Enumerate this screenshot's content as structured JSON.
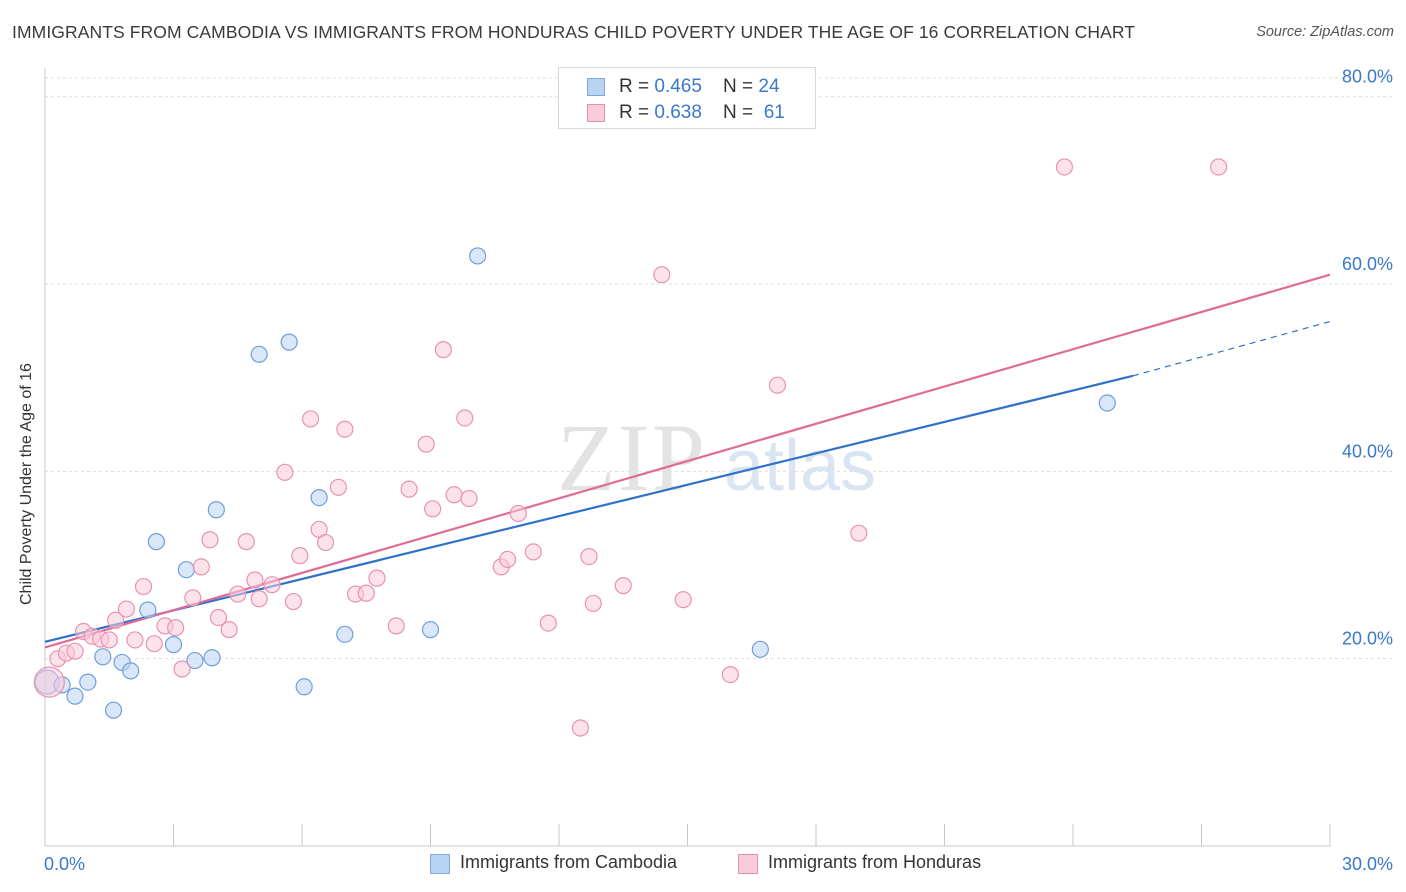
{
  "title": "IMMIGRANTS FROM CAMBODIA VS IMMIGRANTS FROM HONDURAS CHILD POVERTY UNDER THE AGE OF 16 CORRELATION CHART",
  "source": "Source: ZipAtlas.com",
  "watermark": {
    "zip": "ZIP",
    "atlas": "atlas"
  },
  "legend_top": {
    "rows": [
      {
        "r_label": "R = ",
        "r_value": "0.465",
        "n_label": "N = ",
        "n_value": "24",
        "color": "#a9c8f0",
        "border": "#7ea8dc"
      },
      {
        "r_label": "R = ",
        "r_value": "0.638",
        "n_label": "N = ",
        "n_value": "61",
        "color": "#f7bcd0",
        "border": "#e891ae"
      }
    ]
  },
  "chart_data": {
    "type": "scatter",
    "title": "IMMIGRANTS FROM CAMBODIA VS IMMIGRANTS FROM HONDURAS CHILD POVERTY UNDER THE AGE OF 16 CORRELATION CHART",
    "xlabel": "",
    "ylabel": "Child Poverty Under the Age of 16",
    "xlim": [
      0,
      30
    ],
    "ylim": [
      0,
      82
    ],
    "x_tick_labels": [
      "0.0%",
      "30.0%"
    ],
    "y_ticks": [
      20,
      40,
      60,
      80
    ],
    "y_tick_labels": [
      "20.0%",
      "40.0%",
      "60.0%",
      "80.0%"
    ],
    "grid": true,
    "legend_position": "top-center",
    "series": [
      {
        "name": "Immigrants from Cambodia",
        "color": "#6f9fd8",
        "fill": "#b9d3f2",
        "line_color": "#2f72c8",
        "trend": {
          "x0": 0,
          "y0": 21.8,
          "x1": 25.4,
          "y1": 50.2,
          "dash_to_x": 30,
          "dash_to_y": 56.0
        },
        "points": [
          [
            0.05,
            17.5
          ],
          [
            0.4,
            17.2
          ],
          [
            0.7,
            16.0
          ],
          [
            1.0,
            17.5
          ],
          [
            1.35,
            20.2
          ],
          [
            1.6,
            14.5
          ],
          [
            1.8,
            19.6
          ],
          [
            2.0,
            18.7
          ],
          [
            2.4,
            25.2
          ],
          [
            2.6,
            32.5
          ],
          [
            3.0,
            21.5
          ],
          [
            3.3,
            29.5
          ],
          [
            3.5,
            19.8
          ],
          [
            3.9,
            20.1
          ],
          [
            4.0,
            35.9
          ],
          [
            5.0,
            52.5
          ],
          [
            5.7,
            53.8
          ],
          [
            6.05,
            17.0
          ],
          [
            6.4,
            37.2
          ],
          [
            7.0,
            22.6
          ],
          [
            9.0,
            23.1
          ],
          [
            10.1,
            63.0
          ],
          [
            16.7,
            21.0
          ],
          [
            24.8,
            47.3
          ]
        ]
      },
      {
        "name": "Immigrants from Honduras",
        "color": "#e893b0",
        "fill": "#f9cbdb",
        "line_color": "#e06b96",
        "trend": {
          "x0": 0,
          "y0": 21.2,
          "x1": 30,
          "y1": 61.0
        },
        "points": [
          [
            0.1,
            17.5
          ],
          [
            0.3,
            20.0
          ],
          [
            0.5,
            20.6
          ],
          [
            0.7,
            20.8
          ],
          [
            0.9,
            22.9
          ],
          [
            1.1,
            22.4
          ],
          [
            1.3,
            22.1
          ],
          [
            1.5,
            22.0
          ],
          [
            1.65,
            24.1
          ],
          [
            1.9,
            25.3
          ],
          [
            2.1,
            22.0
          ],
          [
            2.3,
            27.7
          ],
          [
            2.55,
            21.6
          ],
          [
            2.8,
            23.5
          ],
          [
            3.05,
            23.3
          ],
          [
            3.2,
            18.9
          ],
          [
            3.45,
            26.5
          ],
          [
            3.65,
            29.8
          ],
          [
            3.85,
            32.7
          ],
          [
            4.05,
            24.4
          ],
          [
            4.3,
            23.1
          ],
          [
            4.5,
            26.9
          ],
          [
            4.7,
            32.5
          ],
          [
            4.9,
            28.4
          ],
          [
            5.0,
            26.4
          ],
          [
            5.3,
            27.9
          ],
          [
            5.6,
            39.9
          ],
          [
            5.8,
            26.1
          ],
          [
            5.95,
            31.0
          ],
          [
            6.2,
            45.6
          ],
          [
            6.4,
            33.8
          ],
          [
            6.55,
            32.4
          ],
          [
            6.85,
            38.3
          ],
          [
            7.0,
            44.5
          ],
          [
            7.25,
            26.9
          ],
          [
            7.5,
            27.0
          ],
          [
            7.75,
            28.6
          ],
          [
            8.2,
            23.5
          ],
          [
            8.5,
            38.1
          ],
          [
            8.9,
            42.9
          ],
          [
            9.05,
            36.0
          ],
          [
            9.3,
            53.0
          ],
          [
            9.55,
            37.5
          ],
          [
            9.8,
            45.7
          ],
          [
            9.9,
            37.1
          ],
          [
            10.65,
            29.8
          ],
          [
            10.8,
            30.6
          ],
          [
            11.05,
            35.5
          ],
          [
            11.4,
            31.4
          ],
          [
            11.75,
            23.8
          ],
          [
            12.5,
            12.6
          ],
          [
            12.7,
            30.9
          ],
          [
            12.8,
            25.9
          ],
          [
            13.5,
            27.8
          ],
          [
            14.4,
            61.0
          ],
          [
            14.9,
            26.3
          ],
          [
            16.0,
            18.3
          ],
          [
            17.1,
            49.2
          ],
          [
            19.0,
            33.4
          ],
          [
            23.8,
            72.5
          ],
          [
            27.4,
            72.5
          ]
        ]
      }
    ]
  }
}
